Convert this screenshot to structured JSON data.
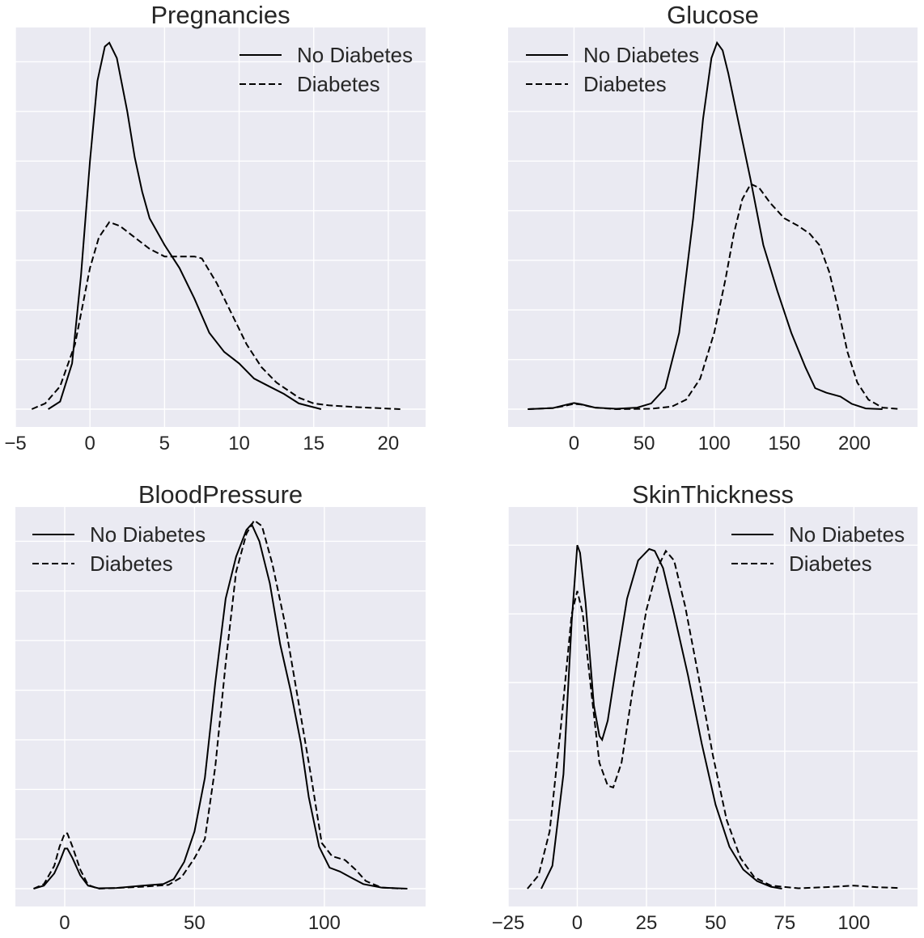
{
  "chart_data": [
    {
      "type": "line",
      "title": "Pregnancies",
      "xlim": [
        -5,
        22.5
      ],
      "ylim": [
        0,
        1
      ],
      "xticks": [
        -5,
        0,
        5,
        10,
        15,
        20
      ],
      "xtick_labels": [
        "−5",
        "0",
        "5",
        "10",
        "15",
        "20"
      ],
      "yticks": [
        0,
        0.13,
        0.26,
        0.39,
        0.52,
        0.65,
        0.78,
        0.91
      ],
      "show_ytick_labels": false,
      "grid": true,
      "legend": "top-right",
      "series": [
        {
          "name": "No Diabetes",
          "style": "solid",
          "points": [
            [
              -2.8,
              0.0
            ],
            [
              -2.0,
              0.02
            ],
            [
              -1.2,
              0.12
            ],
            [
              -0.6,
              0.35
            ],
            [
              0.0,
              0.65
            ],
            [
              0.5,
              0.86
            ],
            [
              1.0,
              0.95
            ],
            [
              1.3,
              0.96
            ],
            [
              1.8,
              0.92
            ],
            [
              2.5,
              0.78
            ],
            [
              3.0,
              0.66
            ],
            [
              3.5,
              0.57
            ],
            [
              4.0,
              0.5
            ],
            [
              5.0,
              0.43
            ],
            [
              6.0,
              0.37
            ],
            [
              7.0,
              0.29
            ],
            [
              8.0,
              0.2
            ],
            [
              9.0,
              0.15
            ],
            [
              10.0,
              0.12
            ],
            [
              11.0,
              0.08
            ],
            [
              12.0,
              0.06
            ],
            [
              13.0,
              0.04
            ],
            [
              14.0,
              0.015
            ],
            [
              15.5,
              0.0
            ]
          ]
        },
        {
          "name": "Diabetes",
          "style": "dashed",
          "points": [
            [
              -3.9,
              0.0
            ],
            [
              -3.0,
              0.015
            ],
            [
              -2.0,
              0.06
            ],
            [
              -1.0,
              0.17
            ],
            [
              0.0,
              0.37
            ],
            [
              0.6,
              0.45
            ],
            [
              1.3,
              0.49
            ],
            [
              2.0,
              0.48
            ],
            [
              3.0,
              0.45
            ],
            [
              4.0,
              0.42
            ],
            [
              5.0,
              0.4
            ],
            [
              6.0,
              0.4
            ],
            [
              7.0,
              0.4
            ],
            [
              7.5,
              0.395
            ],
            [
              8.5,
              0.33
            ],
            [
              9.5,
              0.25
            ],
            [
              10.5,
              0.17
            ],
            [
              11.5,
              0.11
            ],
            [
              12.5,
              0.07
            ],
            [
              14.0,
              0.03
            ],
            [
              15.0,
              0.015
            ],
            [
              16.0,
              0.01
            ],
            [
              18.0,
              0.005
            ],
            [
              20.8,
              0.0
            ]
          ]
        }
      ]
    },
    {
      "type": "line",
      "title": "Glucose",
      "xlim": [
        -47,
        245
      ],
      "ylim": [
        0,
        1
      ],
      "xticks": [
        0,
        50,
        100,
        150,
        200
      ],
      "xtick_labels": [
        "0",
        "50",
        "100",
        "150",
        "200"
      ],
      "yticks": [
        0,
        0.13,
        0.26,
        0.39,
        0.52,
        0.65,
        0.78,
        0.91
      ],
      "show_ytick_labels": false,
      "grid": true,
      "legend": "top-left",
      "series": [
        {
          "name": "No Diabetes",
          "style": "solid",
          "points": [
            [
              -33,
              0.0
            ],
            [
              -15,
              0.003
            ],
            [
              -5,
              0.012
            ],
            [
              0,
              0.016
            ],
            [
              5,
              0.013
            ],
            [
              15,
              0.004
            ],
            [
              30,
              0.001
            ],
            [
              45,
              0.004
            ],
            [
              55,
              0.015
            ],
            [
              65,
              0.055
            ],
            [
              75,
              0.2
            ],
            [
              85,
              0.5
            ],
            [
              92,
              0.76
            ],
            [
              98,
              0.92
            ],
            [
              102,
              0.96
            ],
            [
              106,
              0.94
            ],
            [
              110,
              0.88
            ],
            [
              118,
              0.74
            ],
            [
              126,
              0.6
            ],
            [
              135,
              0.43
            ],
            [
              145,
              0.31
            ],
            [
              155,
              0.2
            ],
            [
              165,
              0.11
            ],
            [
              172,
              0.055
            ],
            [
              180,
              0.043
            ],
            [
              190,
              0.033
            ],
            [
              198,
              0.014
            ],
            [
              208,
              0.002
            ],
            [
              220,
              0.0
            ]
          ]
        },
        {
          "name": "Diabetes",
          "style": "dashed",
          "points": [
            [
              -33,
              0.0
            ],
            [
              -15,
              0.003
            ],
            [
              -5,
              0.01
            ],
            [
              0,
              0.014
            ],
            [
              5,
              0.012
            ],
            [
              15,
              0.004
            ],
            [
              30,
              0.0
            ],
            [
              55,
              0.001
            ],
            [
              70,
              0.007
            ],
            [
              80,
              0.025
            ],
            [
              90,
              0.08
            ],
            [
              100,
              0.2
            ],
            [
              108,
              0.34
            ],
            [
              114,
              0.46
            ],
            [
              120,
              0.55
            ],
            [
              126,
              0.59
            ],
            [
              132,
              0.58
            ],
            [
              140,
              0.54
            ],
            [
              150,
              0.5
            ],
            [
              160,
              0.48
            ],
            [
              168,
              0.46
            ],
            [
              175,
              0.43
            ],
            [
              182,
              0.36
            ],
            [
              188,
              0.27
            ],
            [
              195,
              0.15
            ],
            [
              202,
              0.07
            ],
            [
              210,
              0.025
            ],
            [
              220,
              0.004
            ],
            [
              233,
              0.0
            ]
          ]
        }
      ]
    },
    {
      "type": "line",
      "title": "BloodPressure",
      "xlim": [
        -19,
        139
      ],
      "ylim": [
        0,
        1
      ],
      "xticks": [
        0,
        50,
        100
      ],
      "xtick_labels": [
        "0",
        "50",
        "100"
      ],
      "yticks": [
        0,
        0.13,
        0.26,
        0.39,
        0.52,
        0.65,
        0.78,
        0.91
      ],
      "show_ytick_labels": false,
      "grid": true,
      "legend": "top-left",
      "series": [
        {
          "name": "No Diabetes",
          "style": "solid",
          "points": [
            [
              -12,
              0.0
            ],
            [
              -8,
              0.008
            ],
            [
              -4,
              0.04
            ],
            [
              -2,
              0.07
            ],
            [
              0,
              0.105
            ],
            [
              1,
              0.105
            ],
            [
              3,
              0.08
            ],
            [
              6,
              0.035
            ],
            [
              9,
              0.008
            ],
            [
              13,
              0.001
            ],
            [
              20,
              0.002
            ],
            [
              30,
              0.008
            ],
            [
              38,
              0.012
            ],
            [
              42,
              0.025
            ],
            [
              46,
              0.07
            ],
            [
              50,
              0.15
            ],
            [
              54,
              0.29
            ],
            [
              58,
              0.54
            ],
            [
              62,
              0.76
            ],
            [
              66,
              0.87
            ],
            [
              70,
              0.94
            ],
            [
              72,
              0.955
            ],
            [
              75,
              0.91
            ],
            [
              79,
              0.8
            ],
            [
              83,
              0.64
            ],
            [
              87,
              0.52
            ],
            [
              91,
              0.38
            ],
            [
              94,
              0.24
            ],
            [
              98,
              0.11
            ],
            [
              102,
              0.055
            ],
            [
              106,
              0.045
            ],
            [
              110,
              0.03
            ],
            [
              115,
              0.012
            ],
            [
              122,
              0.003
            ],
            [
              132,
              0.0
            ]
          ]
        },
        {
          "name": "Diabetes",
          "style": "dashed",
          "points": [
            [
              -12,
              0.0
            ],
            [
              -8,
              0.012
            ],
            [
              -4,
              0.06
            ],
            [
              -2,
              0.11
            ],
            [
              0,
              0.145
            ],
            [
              1,
              0.145
            ],
            [
              3,
              0.11
            ],
            [
              6,
              0.05
            ],
            [
              9,
              0.01
            ],
            [
              13,
              0.0
            ],
            [
              20,
              0.002
            ],
            [
              30,
              0.005
            ],
            [
              40,
              0.01
            ],
            [
              45,
              0.03
            ],
            [
              50,
              0.08
            ],
            [
              54,
              0.13
            ],
            [
              58,
              0.32
            ],
            [
              62,
              0.59
            ],
            [
              66,
              0.83
            ],
            [
              70,
              0.93
            ],
            [
              73,
              0.965
            ],
            [
              76,
              0.95
            ],
            [
              80,
              0.85
            ],
            [
              85,
              0.69
            ],
            [
              90,
              0.49
            ],
            [
              95,
              0.29
            ],
            [
              99,
              0.12
            ],
            [
              103,
              0.085
            ],
            [
              108,
              0.075
            ],
            [
              112,
              0.05
            ],
            [
              116,
              0.02
            ],
            [
              122,
              0.003
            ],
            [
              130,
              0.0
            ]
          ]
        }
      ]
    },
    {
      "type": "line",
      "title": "SkinThickness",
      "xlim": [
        -25,
        123
      ],
      "ylim": [
        0,
        1
      ],
      "xticks": [
        -25,
        0,
        25,
        50,
        75,
        100
      ],
      "xtick_labels": [
        "−25",
        "0",
        "25",
        "50",
        "75",
        "100"
      ],
      "yticks": [
        0,
        0.18,
        0.36,
        0.54,
        0.72,
        0.9
      ],
      "show_ytick_labels": false,
      "grid": true,
      "legend": "top-right",
      "series": [
        {
          "name": "No Diabetes",
          "style": "solid",
          "points": [
            [
              -13,
              0.0
            ],
            [
              -9,
              0.06
            ],
            [
              -5,
              0.3
            ],
            [
              -2,
              0.7
            ],
            [
              0,
              0.9
            ],
            [
              1,
              0.88
            ],
            [
              3,
              0.75
            ],
            [
              6,
              0.48
            ],
            [
              8,
              0.4
            ],
            [
              9,
              0.39
            ],
            [
              11,
              0.44
            ],
            [
              14,
              0.58
            ],
            [
              18,
              0.76
            ],
            [
              22,
              0.86
            ],
            [
              26,
              0.89
            ],
            [
              28,
              0.885
            ],
            [
              31,
              0.84
            ],
            [
              35,
              0.72
            ],
            [
              40,
              0.56
            ],
            [
              45,
              0.38
            ],
            [
              50,
              0.22
            ],
            [
              55,
              0.11
            ],
            [
              60,
              0.05
            ],
            [
              65,
              0.02
            ],
            [
              70,
              0.005
            ],
            [
              74,
              0.0
            ]
          ]
        },
        {
          "name": "Diabetes",
          "style": "dashed",
          "points": [
            [
              -18,
              0.0
            ],
            [
              -14,
              0.035
            ],
            [
              -10,
              0.15
            ],
            [
              -6,
              0.42
            ],
            [
              -2,
              0.72
            ],
            [
              0,
              0.78
            ],
            [
              2,
              0.72
            ],
            [
              5,
              0.52
            ],
            [
              8,
              0.33
            ],
            [
              11,
              0.27
            ],
            [
              13,
              0.265
            ],
            [
              16,
              0.33
            ],
            [
              20,
              0.52
            ],
            [
              25,
              0.73
            ],
            [
              29,
              0.84
            ],
            [
              32,
              0.885
            ],
            [
              35,
              0.86
            ],
            [
              39,
              0.74
            ],
            [
              44,
              0.55
            ],
            [
              49,
              0.35
            ],
            [
              54,
              0.18
            ],
            [
              59,
              0.08
            ],
            [
              64,
              0.03
            ],
            [
              70,
              0.008
            ],
            [
              80,
              0.001
            ],
            [
              90,
              0.004
            ],
            [
              100,
              0.008
            ],
            [
              108,
              0.004
            ],
            [
              116,
              0.002
            ]
          ]
        }
      ]
    }
  ]
}
